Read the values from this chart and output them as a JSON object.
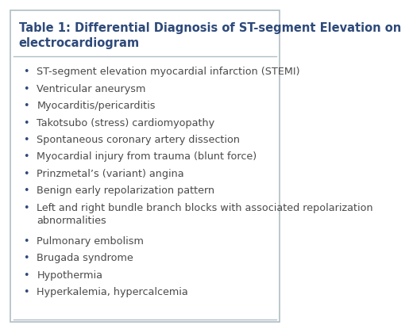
{
  "title": "Table 1: Differential Diagnosis of ST-segment Elevation on\nelectrocardiogram",
  "title_color": "#2e4a7a",
  "title_fontsize": 10.5,
  "body_fontsize": 9.2,
  "bullet_color": "#2e4a7a",
  "text_color": "#4a4a4a",
  "background_color": "#ffffff",
  "border_color": "#b0bec5",
  "header_line_color": "#b0bec5",
  "bullet_char": "•",
  "items": [
    "ST-segment elevation myocardial infarction (STEMI)",
    "Ventricular aneurysm",
    "Myocarditis/pericarditis",
    "Takotsubo (stress) cardiomyopathy",
    "Spontaneous coronary artery dissection",
    "Myocardial injury from trauma (blunt force)",
    "Prinzmetal’s (variant) angina",
    "Benign early repolarization pattern",
    "Left and right bundle branch blocks with associated repolarization\nabnormalities",
    "Pulmonary embolism",
    "Brugada syndrome",
    "Hypothermia",
    "Hyperkalemia, hypercalcemia"
  ]
}
